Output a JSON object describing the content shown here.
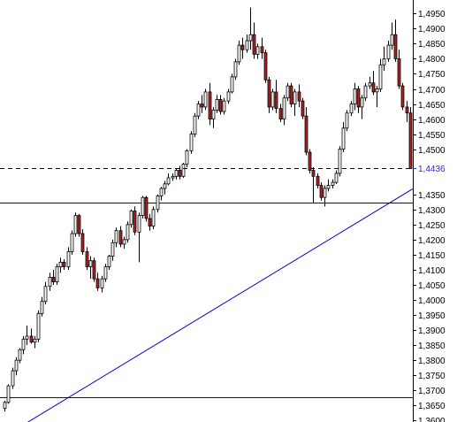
{
  "chart_data": {
    "type": "candlestick",
    "title": "",
    "xlabel": "",
    "ylabel": "",
    "y_axis_position": "right",
    "ylim": [
      1.3595,
      1.4995
    ],
    "grid": false,
    "y_ticks": [
      "1,4950",
      "1,4900",
      "1,4850",
      "1,4800",
      "1,4750",
      "1,4700",
      "1,4650",
      "1,4600",
      "1,4550",
      "1,4500",
      "1,4350",
      "1,4300",
      "1,4250",
      "1,4200",
      "1,4150",
      "1,4100",
      "1,4050",
      "1,4000",
      "1,3950",
      "1,3900",
      "1,3850",
      "1,3800",
      "1,3750",
      "1,3700",
      "1,3650",
      "1,3600"
    ],
    "y_tick_values": [
      1.495,
      1.49,
      1.485,
      1.48,
      1.475,
      1.47,
      1.465,
      1.46,
      1.455,
      1.45,
      1.435,
      1.43,
      1.425,
      1.42,
      1.415,
      1.41,
      1.405,
      1.4,
      1.395,
      1.39,
      1.385,
      1.38,
      1.375,
      1.37,
      1.365,
      1.36
    ],
    "last_price": {
      "label": "1,4436",
      "value": 1.4436
    },
    "horizontal_levels": [
      {
        "value": 1.4322,
        "style": "solid",
        "color": "#0000cc"
      },
      {
        "value": 1.3677,
        "style": "solid",
        "color": "#0000cc"
      }
    ],
    "trendline": {
      "from_value": 1.36,
      "to_value": 1.455,
      "from_bar": 7,
      "to_bar": 134,
      "color": "#0000cc"
    },
    "up_color": "#ffffff",
    "down_color": "#b22222",
    "candles": [
      [
        1.364,
        1.3665,
        1.363,
        1.366
      ],
      [
        1.366,
        1.372,
        1.3655,
        1.3715
      ],
      [
        1.3715,
        1.3775,
        1.3705,
        1.3765
      ],
      [
        1.3765,
        1.381,
        1.375,
        1.38
      ],
      [
        1.38,
        1.384,
        1.379,
        1.3835
      ],
      [
        1.3835,
        1.388,
        1.382,
        1.387
      ],
      [
        1.387,
        1.3915,
        1.385,
        1.388
      ],
      [
        1.388,
        1.3905,
        1.3855,
        1.386
      ],
      [
        1.386,
        1.388,
        1.384,
        1.387
      ],
      [
        1.387,
        1.3965,
        1.386,
        1.3955
      ],
      [
        1.3955,
        1.401,
        1.3945,
        1.3995
      ],
      [
        1.3995,
        1.406,
        1.3985,
        1.4045
      ],
      [
        1.4045,
        1.409,
        1.403,
        1.4075
      ],
      [
        1.4075,
        1.41,
        1.405,
        1.406
      ],
      [
        1.406,
        1.412,
        1.405,
        1.411
      ],
      [
        1.411,
        1.414,
        1.409,
        1.4125
      ],
      [
        1.4125,
        1.4135,
        1.41,
        1.411
      ],
      [
        1.411,
        1.4175,
        1.41,
        1.416
      ],
      [
        1.416,
        1.423,
        1.415,
        1.422
      ],
      [
        1.422,
        1.429,
        1.421,
        1.428
      ],
      [
        1.428,
        1.4285,
        1.421,
        1.422
      ],
      [
        1.422,
        1.4235,
        1.415,
        1.416
      ],
      [
        1.416,
        1.4175,
        1.41,
        1.411
      ],
      [
        1.411,
        1.4145,
        1.407,
        1.413
      ],
      [
        1.413,
        1.414,
        1.406,
        1.407
      ],
      [
        1.407,
        1.409,
        1.403,
        1.404
      ],
      [
        1.404,
        1.408,
        1.4025,
        1.407
      ],
      [
        1.407,
        1.412,
        1.406,
        1.411
      ],
      [
        1.411,
        1.415,
        1.41,
        1.4145
      ],
      [
        1.4145,
        1.42,
        1.413,
        1.419
      ],
      [
        1.419,
        1.424,
        1.4175,
        1.423
      ],
      [
        1.423,
        1.4245,
        1.4175,
        1.4185
      ],
      [
        1.4185,
        1.421,
        1.417,
        1.42
      ],
      [
        1.42,
        1.426,
        1.419,
        1.425
      ],
      [
        1.425,
        1.43,
        1.424,
        1.4295
      ],
      [
        1.4295,
        1.431,
        1.4215,
        1.4225
      ],
      [
        1.4225,
        1.429,
        1.4125,
        1.428
      ],
      [
        1.428,
        1.4345,
        1.427,
        1.434
      ],
      [
        1.434,
        1.4345,
        1.426,
        1.427
      ],
      [
        1.427,
        1.4285,
        1.423,
        1.4245
      ],
      [
        1.4245,
        1.431,
        1.4235,
        1.43
      ],
      [
        1.43,
        1.435,
        1.429,
        1.4345
      ],
      [
        1.4345,
        1.4375,
        1.433,
        1.437
      ],
      [
        1.437,
        1.4395,
        1.435,
        1.4385
      ],
      [
        1.4385,
        1.442,
        1.438,
        1.4405
      ],
      [
        1.4405,
        1.442,
        1.4395,
        1.441
      ],
      [
        1.441,
        1.4435,
        1.44,
        1.443
      ],
      [
        1.443,
        1.4445,
        1.44,
        1.441
      ],
      [
        1.441,
        1.4455,
        1.4405,
        1.445
      ],
      [
        1.445,
        1.45,
        1.444,
        1.4495
      ],
      [
        1.4495,
        1.456,
        1.4485,
        1.455
      ],
      [
        1.455,
        1.462,
        1.454,
        1.461
      ],
      [
        1.461,
        1.466,
        1.46,
        1.465
      ],
      [
        1.465,
        1.468,
        1.462,
        1.464
      ],
      [
        1.464,
        1.47,
        1.463,
        1.469
      ],
      [
        1.469,
        1.472,
        1.458,
        1.46
      ],
      [
        1.46,
        1.464,
        1.457,
        1.463
      ],
      [
        1.463,
        1.468,
        1.462,
        1.4665
      ],
      [
        1.4665,
        1.468,
        1.4615,
        1.4625
      ],
      [
        1.4625,
        1.467,
        1.4615,
        1.466
      ],
      [
        1.466,
        1.47,
        1.465,
        1.469
      ],
      [
        1.469,
        1.475,
        1.4685,
        1.474
      ],
      [
        1.474,
        1.48,
        1.473,
        1.479
      ],
      [
        1.479,
        1.486,
        1.478,
        1.4845
      ],
      [
        1.4845,
        1.487,
        1.48,
        1.483
      ],
      [
        1.483,
        1.488,
        1.482,
        1.486
      ],
      [
        1.486,
        1.497,
        1.483,
        1.488
      ],
      [
        1.488,
        1.492,
        1.48,
        1.4815
      ],
      [
        1.4815,
        1.485,
        1.48,
        1.484
      ],
      [
        1.484,
        1.487,
        1.48,
        1.482
      ],
      [
        1.482,
        1.483,
        1.472,
        1.473
      ],
      [
        1.473,
        1.474,
        1.462,
        1.464
      ],
      [
        1.464,
        1.47,
        1.463,
        1.469
      ],
      [
        1.469,
        1.473,
        1.462,
        1.4635
      ],
      [
        1.4635,
        1.465,
        1.459,
        1.46
      ],
      [
        1.46,
        1.468,
        1.458,
        1.467
      ],
      [
        1.467,
        1.472,
        1.466,
        1.471
      ],
      [
        1.471,
        1.472,
        1.464,
        1.465
      ],
      [
        1.465,
        1.47,
        1.461,
        1.469
      ],
      [
        1.469,
        1.4715,
        1.464,
        1.466
      ],
      [
        1.466,
        1.467,
        1.46,
        1.461
      ],
      [
        1.461,
        1.464,
        1.448,
        1.449
      ],
      [
        1.449,
        1.45,
        1.442,
        1.443
      ],
      [
        1.443,
        1.444,
        1.432,
        1.441
      ],
      [
        1.441,
        1.442,
        1.437,
        1.438
      ],
      [
        1.438,
        1.439,
        1.433,
        1.434
      ],
      [
        1.434,
        1.438,
        1.431,
        1.437
      ],
      [
        1.437,
        1.44,
        1.436,
        1.438
      ],
      [
        1.438,
        1.44,
        1.437,
        1.439
      ],
      [
        1.439,
        1.443,
        1.4385,
        1.442
      ],
      [
        1.442,
        1.451,
        1.441,
        1.45
      ],
      [
        1.45,
        1.459,
        1.449,
        1.457
      ],
      [
        1.457,
        1.463,
        1.456,
        1.462
      ],
      [
        1.462,
        1.466,
        1.461,
        1.465
      ],
      [
        1.465,
        1.472,
        1.463,
        1.47
      ],
      [
        1.47,
        1.471,
        1.462,
        1.464
      ],
      [
        1.464,
        1.468,
        1.46,
        1.467
      ],
      [
        1.467,
        1.472,
        1.466,
        1.471
      ],
      [
        1.471,
        1.474,
        1.47,
        1.472
      ],
      [
        1.472,
        1.476,
        1.468,
        1.469
      ],
      [
        1.469,
        1.471,
        1.464,
        1.47
      ],
      [
        1.47,
        1.48,
        1.469,
        1.478
      ],
      [
        1.478,
        1.484,
        1.476,
        1.48
      ],
      [
        1.48,
        1.486,
        1.479,
        1.4845
      ],
      [
        1.4845,
        1.492,
        1.483,
        1.488
      ],
      [
        1.488,
        1.493,
        1.479,
        1.48
      ],
      [
        1.48,
        1.483,
        1.47,
        1.471
      ],
      [
        1.471,
        1.472,
        1.463,
        1.464
      ],
      [
        1.464,
        1.466,
        1.459,
        1.462
      ],
      [
        1.462,
        1.464,
        1.4436,
        1.4436
      ]
    ]
  }
}
